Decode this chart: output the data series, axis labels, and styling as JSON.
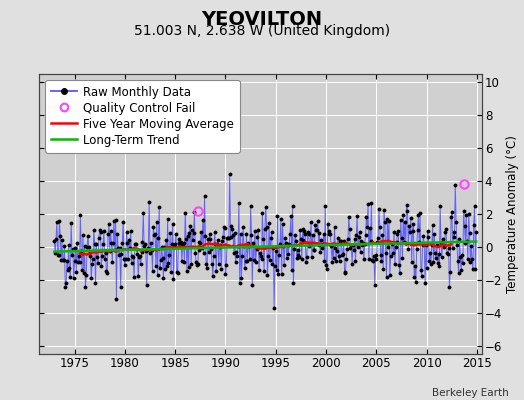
{
  "title": "YEOVILTON",
  "subtitle": "51.003 N, 2.638 W (United Kingdom)",
  "ylabel": "Temperature Anomaly (°C)",
  "watermark": "Berkeley Earth",
  "xlim": [
    1971.5,
    2015.5
  ],
  "ylim": [
    -6.5,
    10.5
  ],
  "yticks": [
    -6,
    -4,
    -2,
    0,
    2,
    4,
    6,
    8,
    10
  ],
  "xticks": [
    1975,
    1980,
    1985,
    1990,
    1995,
    2000,
    2005,
    2010,
    2015
  ],
  "bg_color": "#e0e0e0",
  "plot_bg_color": "#d0d0d0",
  "grid_color": "#ffffff",
  "raw_line_color": "#5555ff",
  "raw_dot_color": "#000000",
  "moving_avg_color": "#ff0000",
  "trend_color": "#00bb00",
  "qc_fail_color": "#ff44ff",
  "title_fontsize": 14,
  "subtitle_fontsize": 10,
  "legend_fontsize": 8.5,
  "tick_fontsize": 8.5,
  "ylabel_fontsize": 8.5,
  "seed": 42,
  "noise_std": 1.15,
  "trend_slope": 0.012,
  "start_year": 1973.0,
  "end_year": 2014.92,
  "qc_year1": 1987.3,
  "qc_val1": 2.2,
  "qc_year2": 2013.75,
  "qc_val2": 3.8
}
